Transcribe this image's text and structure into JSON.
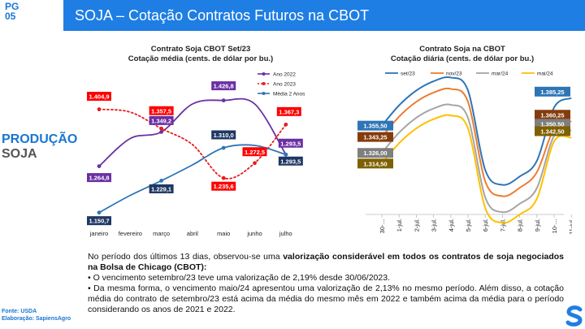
{
  "page": {
    "label_pg": "PG",
    "number": "05"
  },
  "header": {
    "title": "SOJA – Cotação Contratos Futuros na CBOT"
  },
  "sidebar": {
    "section": "PRODUÇÃO",
    "subsection": "SOJA",
    "source": "Fonte: USDA",
    "credit": "Elaboração: SapiensAgro"
  },
  "colors": {
    "header": "#1e7ee3",
    "accent": "#1976d2"
  },
  "chart_data": [
    {
      "type": "line",
      "title": "Contrato Soja CBOT Set/23",
      "subtitle": "Cotação média (cents. de dólar por bu.)",
      "categories": [
        "janeiro",
        "fevereiro",
        "março",
        "abril",
        "maio",
        "junho",
        "julho"
      ],
      "series": [
        {
          "name": "Ano 2022",
          "values": [
            1264.8,
            null,
            1349.2,
            null,
            1426.8,
            null,
            1293.5
          ],
          "color": "#6b2fa3",
          "labels": [
            "1.264,8",
            "",
            "1.349,2",
            "",
            "1.426,8",
            "",
            "1.293,5"
          ]
        },
        {
          "name": "Ano 2023",
          "values": [
            1404.9,
            null,
            1357.5,
            null,
            1235.6,
            1272.5,
            1367.3
          ],
          "color": "#e31e24",
          "labels": [
            "1.404,9",
            "",
            "1.357,5",
            "",
            "1.235,6",
            "1.272,5",
            "1.367,3"
          ]
        },
        {
          "name": "Média 2 Anos",
          "values": [
            1150.7,
            null,
            1229.1,
            null,
            1310.0,
            null,
            1293.5
          ],
          "color": "#2e75b6",
          "labels": [
            "1.150,7",
            "",
            "1.229,1",
            "",
            "1.310,0",
            "",
            "1.293,5"
          ]
        }
      ],
      "legend": "top-right"
    },
    {
      "type": "line",
      "title": "Contrato Soja na CBOT",
      "subtitle": "Cotação diária (cents. de dólar por bu.)",
      "categories": [
        "30-…",
        "1-jul.",
        "2-jul.",
        "3-jul.",
        "4-jul.",
        "5-jul.",
        "6-jul.",
        "7-jul.",
        "8-jul.",
        "9-jul.",
        "10-…",
        "11-jul."
      ],
      "series": [
        {
          "name": "set/23",
          "start": 1355.5,
          "end": 1385.25,
          "start_label": "1.355,50",
          "end_label": "1.385,25",
          "color": "#2e75b6"
        },
        {
          "name": "nov/23",
          "start": 1343.25,
          "end": 1360.25,
          "start_label": "1.343,25",
          "end_label": "1.360,25",
          "color": "#ed7d31"
        },
        {
          "name": "mar/24",
          "start": 1326.0,
          "end": 1350.5,
          "start_label": "1.326,00",
          "end_label": "1.350,50",
          "color": "#a5a5a5"
        },
        {
          "name": "mai/24",
          "start": 1314.5,
          "end": 1342.5,
          "start_label": "1.314,50",
          "end_label": "1.342,50",
          "color": "#ffc000"
        }
      ],
      "legend": "top"
    }
  ],
  "text": {
    "p1_a": "No período dos últimos 13 dias, observou-se uma ",
    "p1_b": "valorização considerável em todos os contratos de soja negociados na Bolsa de Chicago (CBOT):",
    "b1": "• O vencimento setembro/23 teve uma valorização de 2,19% desde 30/06/2023.",
    "b2": "• Da mesma forma, o vencimento maio/24 apresentou uma valorização de 2,13% no mesmo período. Além disso, a cotação média do contrato de setembro/23 está acima da média do mesmo mês em 2022 e também acima da média para o período considerando os anos de 2021 e 2022."
  }
}
